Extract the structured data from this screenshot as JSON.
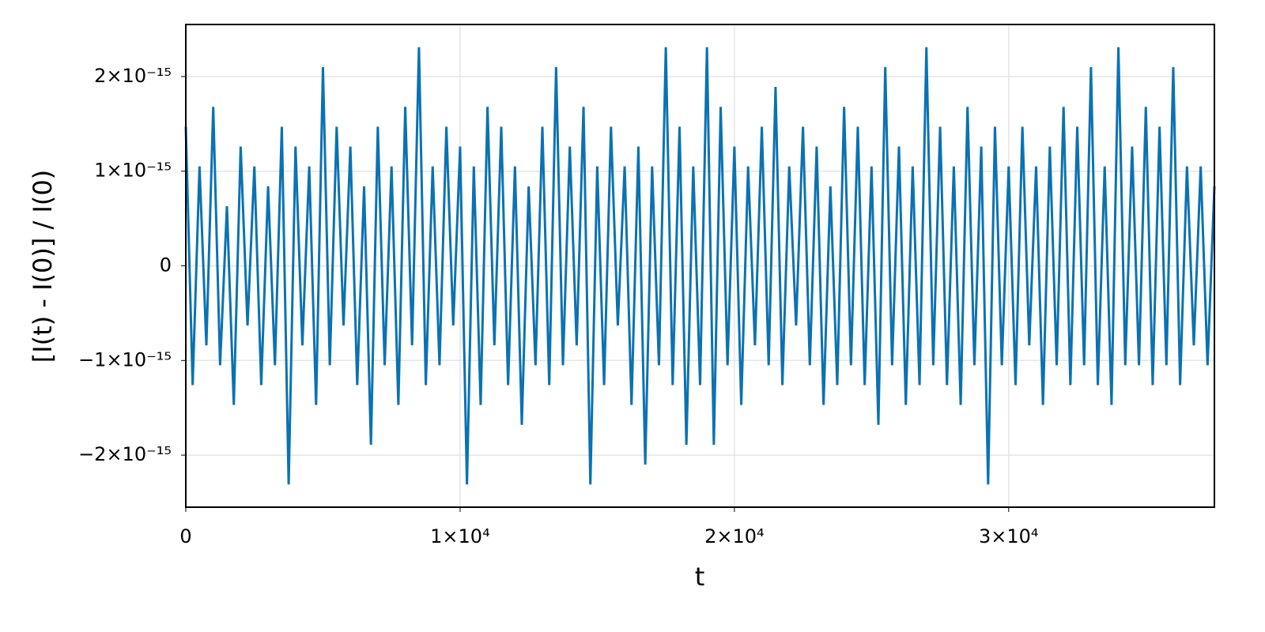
{
  "chart_data": {
    "type": "line",
    "xlabel": "t",
    "ylabel": "[I(t) - I(0)] / I(0)",
    "color": "#0a72b3",
    "grid": true,
    "xlim": [
      0,
      37500
    ],
    "ylim": [
      -2.55e-15,
      2.55e-15
    ],
    "xticks": [
      0,
      {
        "value": 10000,
        "label": "1×10⁴"
      },
      {
        "value": 20000,
        "label": "2×10⁴"
      },
      {
        "value": 30000,
        "label": "3×10⁴"
      }
    ],
    "yticks": [
      {
        "value": -2e-15,
        "label": "−2×10⁻¹⁵"
      },
      {
        "value": -1e-15,
        "label": "−1×10⁻¹⁵"
      },
      0,
      {
        "value": 1e-15,
        "label": "1×10⁻¹⁵"
      },
      {
        "value": 2e-15,
        "label": "2×10⁻¹⁵"
      }
    ],
    "x": [
      0,
      250,
      500,
      750,
      1000,
      1250,
      1500,
      1750,
      2000,
      2250,
      2500,
      2750,
      3000,
      3250,
      3500,
      3750,
      4000,
      4250,
      4500,
      4750,
      5000,
      5250,
      5500,
      5750,
      6000,
      6250,
      6500,
      6750,
      7000,
      7250,
      7500,
      7750,
      8000,
      8250,
      8500,
      8750,
      9000,
      9250,
      9500,
      9750,
      10000,
      10250,
      10500,
      10750,
      11000,
      11250,
      11500,
      11750,
      12000,
      12250,
      12500,
      12750,
      13000,
      13250,
      13500,
      13750,
      14000,
      14250,
      14500,
      14750,
      15000,
      15250,
      15500,
      15750,
      16000,
      16250,
      16500,
      16750,
      17000,
      17250,
      17500,
      17750,
      18000,
      18250,
      18500,
      18750,
      19000,
      19250,
      19500,
      19750,
      20000,
      20250,
      20500,
      20750,
      21000,
      21250,
      21500,
      21750,
      22000,
      22250,
      22500,
      22750,
      23000,
      23250,
      23500,
      23750,
      24000,
      24250,
      24500,
      24750,
      25000,
      25250,
      25500,
      25750,
      26000,
      26250,
      26500,
      26750,
      27000,
      27250,
      27500,
      27750,
      28000,
      28250,
      28500,
      28750,
      29000,
      29250,
      29500,
      29750,
      30000,
      30250,
      30500,
      30750,
      31000,
      31250,
      31500,
      31750,
      32000,
      32250,
      32500,
      32750,
      33000,
      33250,
      33500,
      33750,
      34000,
      34250,
      34500,
      34750,
      35000,
      35250,
      35500,
      35750,
      36000,
      36250,
      36500,
      36750,
      37000,
      37250,
      37500
    ],
    "values": [
      1.47e-15,
      -1.26e-15,
      1.05e-15,
      -8.4e-16,
      1.68e-15,
      -1.05e-15,
      6.3e-16,
      -1.47e-15,
      1.26e-15,
      -6.3e-16,
      1.05e-15,
      -1.26e-15,
      8.4e-16,
      -1.05e-15,
      1.47e-15,
      -2.31e-15,
      1.26e-15,
      -8.4e-16,
      1.05e-15,
      -1.47e-15,
      2.1e-15,
      -1.05e-15,
      1.47e-15,
      -6.3e-16,
      1.26e-15,
      -1.26e-15,
      8.4e-16,
      -1.89e-15,
      1.47e-15,
      -1.05e-15,
      1.05e-15,
      -1.47e-15,
      1.68e-15,
      -8.4e-16,
      2.31e-15,
      -1.26e-15,
      1.05e-15,
      -1.05e-15,
      1.47e-15,
      -6.3e-16,
      1.26e-15,
      -2.31e-15,
      1.05e-15,
      -1.47e-15,
      1.68e-15,
      -8.4e-16,
      1.47e-15,
      -1.26e-15,
      1.05e-15,
      -1.68e-15,
      8.4e-16,
      -1.05e-15,
      1.47e-15,
      -1.26e-15,
      2.1e-15,
      -1.05e-15,
      1.26e-15,
      -8.4e-16,
      1.68e-15,
      -2.31e-15,
      1.05e-15,
      -1.26e-15,
      1.47e-15,
      -6.3e-16,
      1.05e-15,
      -1.47e-15,
      1.26e-15,
      -2.1e-15,
      1.05e-15,
      -1.05e-15,
      2.31e-15,
      -1.26e-15,
      1.47e-15,
      -1.89e-15,
      1.05e-15,
      -1.26e-15,
      2.31e-15,
      -1.89e-15,
      1.68e-15,
      -1.05e-15,
      1.26e-15,
      -1.47e-15,
      1.05e-15,
      -8.4e-16,
      1.47e-15,
      -1.05e-15,
      1.89e-15,
      -1.26e-15,
      1.05e-15,
      -6.3e-16,
      1.47e-15,
      -1.05e-15,
      1.26e-15,
      -1.47e-15,
      8.4e-16,
      -1.26e-15,
      1.68e-15,
      -1.05e-15,
      1.47e-15,
      -1.26e-15,
      1.05e-15,
      -1.68e-15,
      2.1e-15,
      -1.05e-15,
      1.26e-15,
      -1.47e-15,
      1.05e-15,
      -1.26e-15,
      2.31e-15,
      -1.05e-15,
      1.47e-15,
      -1.26e-15,
      1.05e-15,
      -1.47e-15,
      1.68e-15,
      -1.05e-15,
      1.26e-15,
      -2.31e-15,
      1.47e-15,
      -1.05e-15,
      1.05e-15,
      -1.26e-15,
      1.47e-15,
      -8.4e-16,
      1.05e-15,
      -1.47e-15,
      1.26e-15,
      -1.05e-15,
      1.68e-15,
      -1.26e-15,
      1.47e-15,
      -1.05e-15,
      2.1e-15,
      -1.26e-15,
      1.05e-15,
      -1.47e-15,
      2.31e-15,
      -1.05e-15,
      1.26e-15,
      -1.05e-15,
      1.68e-15,
      -1.26e-15,
      1.47e-15,
      -1.05e-15,
      2.1e-15,
      -1.26e-15,
      1.05e-15,
      -8.4e-16,
      1.05e-15,
      -1.05e-15,
      8.4e-16
    ]
  }
}
